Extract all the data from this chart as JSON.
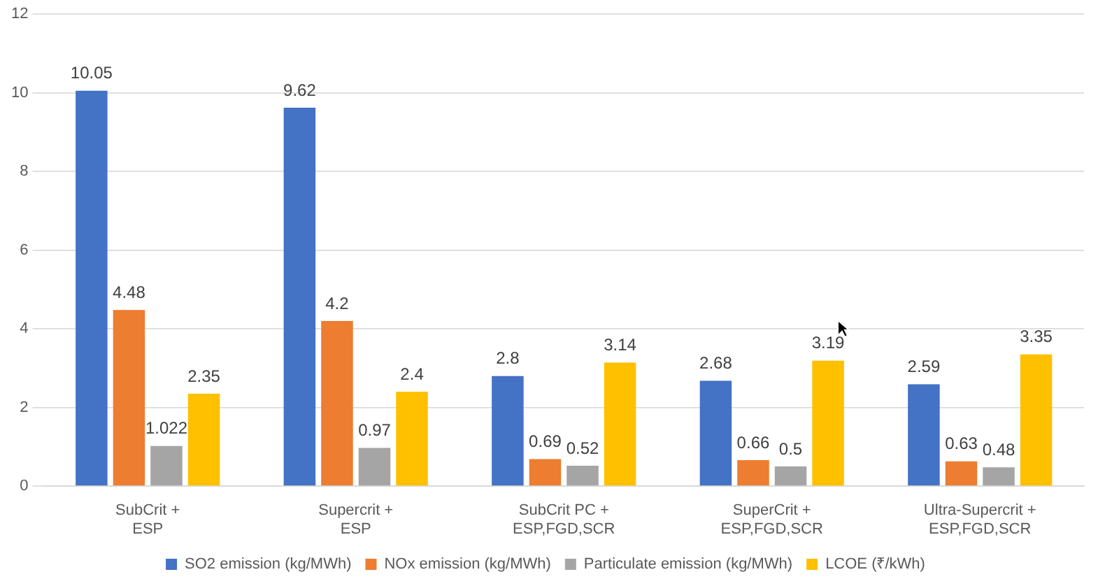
{
  "chart_data": {
    "type": "bar",
    "categories": [
      "SubCrit + ESP",
      "Supercrit + ESP",
      "SubCrit PC + ESP,FGD,SCR",
      "SuperCrit + ESP,FGD,SCR",
      "Ultra-Supercrit + ESP,FGD,SCR"
    ],
    "series": [
      {
        "name": "SO2 emission (kg/MWh)",
        "color": "#4472c4",
        "values": [
          10.05,
          9.62,
          2.8,
          2.68,
          2.59
        ]
      },
      {
        "name": "NOx emission (kg/MWh)",
        "color": "#ed7d31",
        "values": [
          4.48,
          4.2,
          0.69,
          0.66,
          0.63
        ]
      },
      {
        "name": "Particulate emission (kg/MWh)",
        "color": "#a5a5a5",
        "values": [
          1.022,
          0.97,
          0.52,
          0.5,
          0.48
        ]
      },
      {
        "name": "LCOE (₹/kWh)",
        "color": "#ffc000",
        "values": [
          2.35,
          2.4,
          3.14,
          3.19,
          3.35
        ]
      }
    ],
    "ylim": [
      0,
      12
    ],
    "yticks": [
      0,
      2,
      4,
      6,
      8,
      10,
      12
    ],
    "grid": "y",
    "legend": "bottom",
    "data_labels": true
  }
}
